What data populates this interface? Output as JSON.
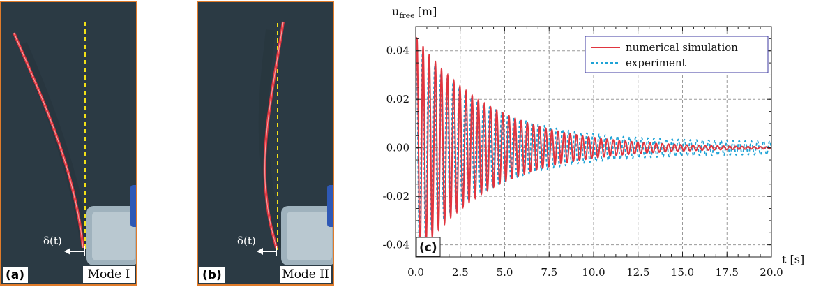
{
  "panels": [
    {
      "tag": "(a)",
      "mode": "Mode I",
      "displacement_label": "δ(t)"
    },
    {
      "tag": "(b)",
      "mode": "Mode II",
      "displacement_label": "δ(t)"
    }
  ],
  "colors": {
    "panel_border": "#e07b2a",
    "reference_line": "#f2e017",
    "beam": "#e0353f",
    "simulation": "#e0353f",
    "experiment": "#1fa3d6"
  },
  "chart_data": {
    "type": "line",
    "panel_tag": "(c)",
    "ylabel_main": "u",
    "ylabel_sub": "free",
    "ylabel_unit": "[m]",
    "xlabel": "t [s]",
    "xlim": [
      0,
      20
    ],
    "ylim": [
      -0.045,
      0.05
    ],
    "xticks": [
      0,
      2.5,
      5,
      7.5,
      10,
      12.5,
      15,
      17.5,
      20
    ],
    "xtick_labels": [
      "0.0",
      "2.5",
      "5.0",
      "7.5",
      "10.0",
      "12.5",
      "15.0",
      "17.5",
      "20.0"
    ],
    "yticks": [
      -0.04,
      -0.02,
      0,
      0.02,
      0.04
    ],
    "ytick_labels": [
      "-0.04",
      "-0.02",
      "0.00",
      "0.02",
      "0.04"
    ],
    "grid": true,
    "legend_position": "top-right",
    "series": [
      {
        "name": "numerical simulation",
        "style": "solid",
        "color": "#e0353f",
        "amplitude": 0.046,
        "decay_time": 4.2,
        "frequency": 2.9,
        "floor": 0.0
      },
      {
        "name": "experiment",
        "style": "dashed",
        "color": "#1fa3d6",
        "amplitude": 0.04,
        "decay_time": 4.0,
        "frequency": 2.92,
        "floor": 0.0025
      }
    ]
  }
}
